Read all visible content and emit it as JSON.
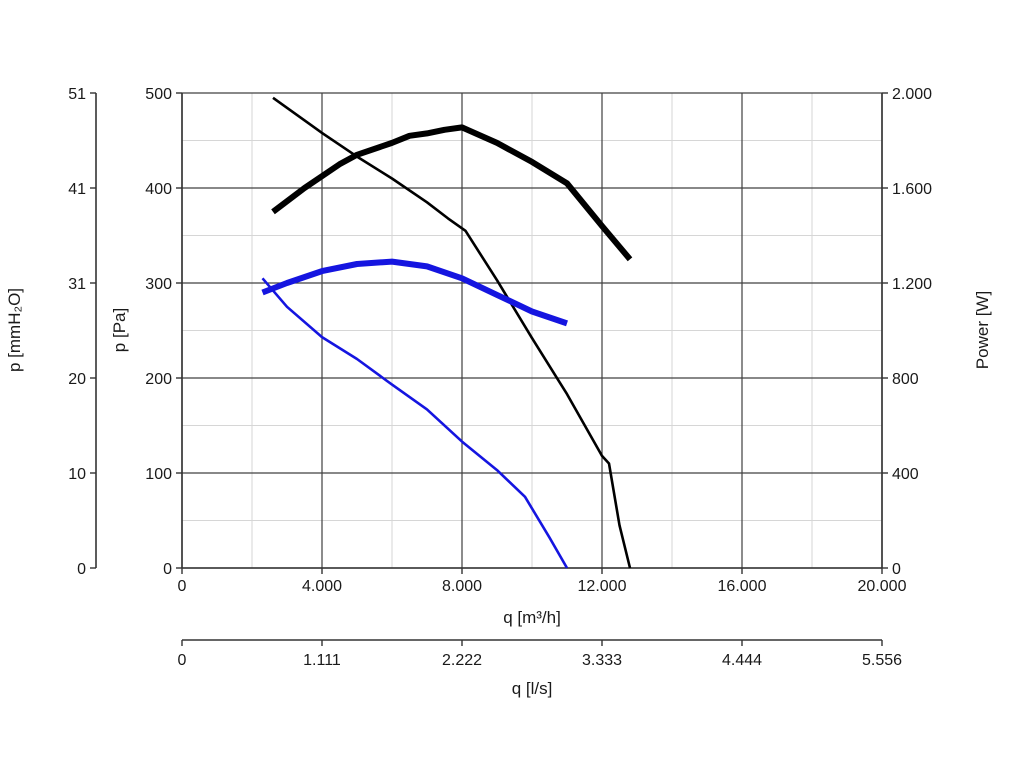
{
  "chart_data": {
    "type": "line",
    "xlabel": "q [m³/h]",
    "x2label": "q [l/s]",
    "ylabel": "p [Pa]",
    "y2label": "p [mmH₂O]",
    "y3label": "Power [W]",
    "xlim": [
      0,
      20000
    ],
    "ylim": [
      0,
      500
    ],
    "power_lim": [
      0,
      2000
    ],
    "x_ticks": [
      "0",
      "4.000",
      "8.000",
      "12.000",
      "16.000",
      "20.000"
    ],
    "x2_ticks": [
      "0",
      "1.111",
      "2.222",
      "3.333",
      "4.444",
      "5.556"
    ],
    "y_ticks": [
      "0",
      "100",
      "200",
      "300",
      "400",
      "500"
    ],
    "y2_ticks": [
      "0",
      "10",
      "20",
      "31",
      "41",
      "51"
    ],
    "power_ticks": [
      "0",
      "400",
      "800",
      "1.200",
      "1.600",
      "2.000"
    ],
    "grid": true,
    "colors": {
      "black": "#000000",
      "blue": "#1515e0",
      "grid_major": "#404040",
      "grid_minor": "#d6d6d6"
    },
    "series": [
      {
        "color": "#000000",
        "weight": "thin",
        "axis": "pressure",
        "x": [
          2600,
          4000,
          5000,
          6000,
          7000,
          7600,
          8100,
          9000,
          10000,
          11000,
          12000,
          12200,
          12500,
          12800
        ],
        "y": [
          495,
          458,
          433,
          410,
          385,
          368,
          355,
          303,
          242,
          183,
          118,
          110,
          45,
          0
        ]
      },
      {
        "color": "#000000",
        "weight": "thick",
        "axis": "power",
        "x": [
          2600,
          3500,
          4500,
          5000,
          6000,
          6500,
          7000,
          7500,
          8000,
          9000,
          10000,
          11000,
          12000,
          12800
        ],
        "y": [
          1500,
          1600,
          1700,
          1740,
          1790,
          1820,
          1830,
          1845,
          1855,
          1790,
          1710,
          1620,
          1440,
          1300
        ]
      },
      {
        "color": "#1515e0",
        "weight": "thin",
        "axis": "pressure",
        "x": [
          2300,
          3000,
          4000,
          5000,
          6000,
          7000,
          8000,
          9000,
          9800,
          10500,
          11000
        ],
        "y": [
          305,
          275,
          243,
          220,
          193,
          167,
          133,
          103,
          75,
          32,
          0
        ]
      },
      {
        "color": "#1515e0",
        "weight": "thick",
        "axis": "power",
        "x": [
          2300,
          3000,
          4000,
          5000,
          6000,
          7000,
          8000,
          9000,
          10000,
          11000
        ],
        "y": [
          1160,
          1200,
          1250,
          1280,
          1290,
          1270,
          1220,
          1150,
          1080,
          1030
        ]
      }
    ]
  }
}
